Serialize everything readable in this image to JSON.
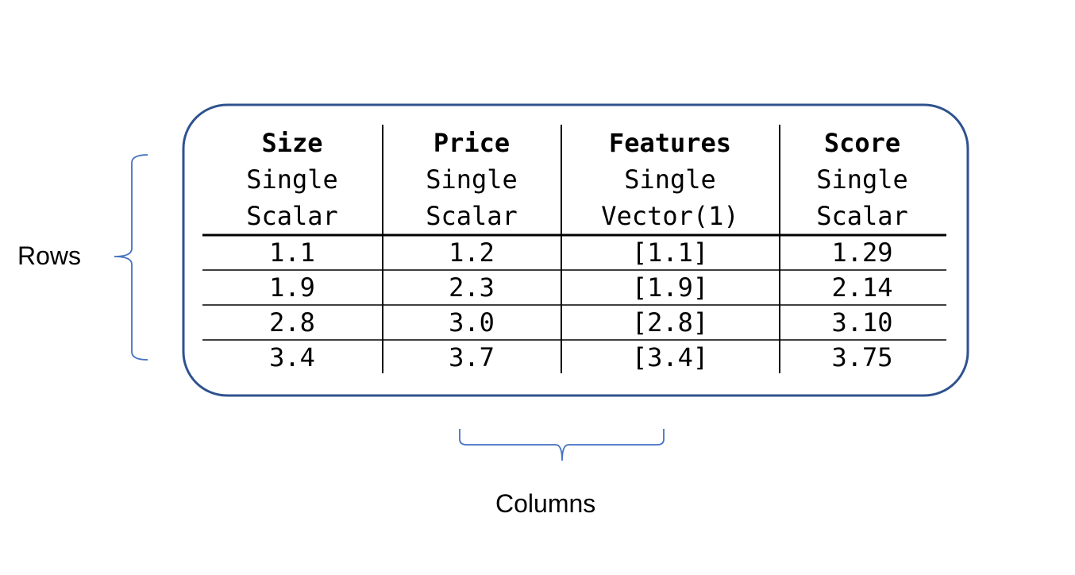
{
  "table": {
    "columns": [
      {
        "name": "Size",
        "kind": "Single",
        "type": "Scalar"
      },
      {
        "name": "Price",
        "kind": "Single",
        "type": "Scalar"
      },
      {
        "name": "Features",
        "kind": "Single",
        "type": "Vector(1)"
      },
      {
        "name": "Score",
        "kind": "Single",
        "type": "Scalar"
      }
    ],
    "rows": [
      [
        "1.1",
        "1.2",
        "[1.1]",
        "1.29"
      ],
      [
        "1.9",
        "2.3",
        "[1.9]",
        "2.14"
      ],
      [
        "2.8",
        "3.0",
        "[2.8]",
        "3.10"
      ],
      [
        "3.4",
        "3.7",
        "[3.4]",
        "3.75"
      ]
    ]
  },
  "labels": {
    "rows": "Rows",
    "columns": "Columns"
  },
  "colors": {
    "box_border": "#2f528f",
    "brace": "#4472c4"
  }
}
